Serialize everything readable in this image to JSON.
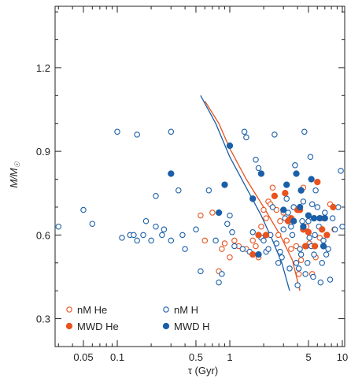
{
  "chart_data": {
    "type": "scatter",
    "xlabel": "τ (Gyr)",
    "ylabel_main": "M/M",
    "ylabel_sub": "☉",
    "x_scale": "log",
    "xlim": [
      0.028,
      10.5
    ],
    "ylim": [
      0.2,
      1.42
    ],
    "x_ticks": [
      {
        "value": 0.05,
        "label": "0.05"
      },
      {
        "value": 0.1,
        "label": "0.1"
      },
      {
        "value": 0.5,
        "label": "0.5"
      },
      {
        "value": 1,
        "label": "1"
      },
      {
        "value": 5,
        "label": "5"
      },
      {
        "value": 10,
        "label": "10"
      }
    ],
    "y_ticks": [
      {
        "value": 0.3,
        "label": "0.3"
      },
      {
        "value": 0.6,
        "label": "0.6"
      },
      {
        "value": 0.9,
        "label": "0.9"
      },
      {
        "value": 1.2,
        "label": "1.2"
      }
    ],
    "grid": false,
    "legend_position": "bottom-left",
    "colors": {
      "He": "#e8531e",
      "H": "#1a5fa8"
    },
    "series": [
      {
        "name": "nM He",
        "marker": "open",
        "color": "#e8531e",
        "points": [
          [
            0.55,
            0.67
          ],
          [
            0.6,
            0.58
          ],
          [
            0.7,
            0.68
          ],
          [
            0.8,
            0.47
          ],
          [
            0.85,
            0.55
          ],
          [
            0.9,
            0.57
          ],
          [
            1.0,
            0.52
          ],
          [
            1.1,
            0.58
          ],
          [
            1.2,
            0.56
          ],
          [
            1.4,
            0.55
          ],
          [
            1.6,
            0.58
          ],
          [
            1.7,
            0.56
          ],
          [
            1.8,
            0.52
          ],
          [
            1.9,
            0.63
          ],
          [
            2.0,
            0.69
          ],
          [
            2.1,
            0.66
          ],
          [
            2.2,
            0.72
          ],
          [
            2.3,
            0.71
          ],
          [
            2.4,
            0.77
          ],
          [
            2.5,
            0.74
          ],
          [
            2.6,
            0.69
          ],
          [
            2.7,
            0.6
          ],
          [
            2.8,
            0.65
          ],
          [
            3.0,
            0.68
          ],
          [
            3.2,
            0.58
          ],
          [
            3.5,
            0.55
          ],
          [
            3.7,
            0.7
          ],
          [
            3.9,
            0.56
          ],
          [
            4.1,
            0.46
          ],
          [
            4.3,
            0.51
          ],
          [
            4.5,
            0.77
          ],
          [
            4.8,
            0.63
          ],
          [
            5.1,
            0.57
          ],
          [
            5.4,
            0.46
          ],
          [
            5.8,
            0.52
          ],
          [
            6.3,
            0.59
          ],
          [
            6.8,
            0.66
          ],
          [
            7.3,
            0.6
          ],
          [
            7.8,
            0.71
          ],
          [
            8.5,
            0.62
          ]
        ]
      },
      {
        "name": "nM H",
        "marker": "open",
        "color": "#1a5fa8",
        "points": [
          [
            0.03,
            0.63
          ],
          [
            0.05,
            0.69
          ],
          [
            0.06,
            0.64
          ],
          [
            0.1,
            0.97
          ],
          [
            0.11,
            0.59
          ],
          [
            0.13,
            0.6
          ],
          [
            0.14,
            0.6
          ],
          [
            0.15,
            0.96
          ],
          [
            0.15,
            0.58
          ],
          [
            0.17,
            0.6
          ],
          [
            0.18,
            0.65
          ],
          [
            0.2,
            0.58
          ],
          [
            0.22,
            0.74
          ],
          [
            0.22,
            0.63
          ],
          [
            0.25,
            0.6
          ],
          [
            0.26,
            0.62
          ],
          [
            0.3,
            0.97
          ],
          [
            0.3,
            0.58
          ],
          [
            0.35,
            0.76
          ],
          [
            0.38,
            0.6
          ],
          [
            0.4,
            0.55
          ],
          [
            0.5,
            0.62
          ],
          [
            0.55,
            0.47
          ],
          [
            0.65,
            0.76
          ],
          [
            0.75,
            0.58
          ],
          [
            0.8,
            0.43
          ],
          [
            0.85,
            0.46
          ],
          [
            0.9,
            0.78
          ],
          [
            0.95,
            0.64
          ],
          [
            1.0,
            0.67
          ],
          [
            1.05,
            0.61
          ],
          [
            1.1,
            0.56
          ],
          [
            1.3,
            0.55
          ],
          [
            1.35,
            0.97
          ],
          [
            1.4,
            0.95
          ],
          [
            1.5,
            0.54
          ],
          [
            1.6,
            0.61
          ],
          [
            1.7,
            0.87
          ],
          [
            1.8,
            0.84
          ],
          [
            1.9,
            0.59
          ],
          [
            2.0,
            0.58
          ],
          [
            2.1,
            0.54
          ],
          [
            2.2,
            0.55
          ],
          [
            2.3,
            0.6
          ],
          [
            2.4,
            0.7
          ],
          [
            2.5,
            0.96
          ],
          [
            2.6,
            0.57
          ],
          [
            2.7,
            0.5
          ],
          [
            2.8,
            0.54
          ],
          [
            2.9,
            0.52
          ],
          [
            3.0,
            0.62
          ],
          [
            3.1,
            0.66
          ],
          [
            3.2,
            0.73
          ],
          [
            3.3,
            0.68
          ],
          [
            3.4,
            0.48
          ],
          [
            3.5,
            0.63
          ],
          [
            3.6,
            0.6
          ],
          [
            3.7,
            0.7
          ],
          [
            3.8,
            0.85
          ],
          [
            3.9,
            0.5
          ],
          [
            4.0,
            0.42
          ],
          [
            4.1,
            0.48
          ],
          [
            4.2,
            0.55
          ],
          [
            4.3,
            0.53
          ],
          [
            4.4,
            0.65
          ],
          [
            4.5,
            0.72
          ],
          [
            4.6,
            0.97
          ],
          [
            4.7,
            0.46
          ],
          [
            4.8,
            0.56
          ],
          [
            4.9,
            0.5
          ],
          [
            5.0,
            0.65
          ],
          [
            5.1,
            0.59
          ],
          [
            5.2,
            0.88
          ],
          [
            5.3,
            0.56
          ],
          [
            5.4,
            0.71
          ],
          [
            5.5,
            0.45
          ],
          [
            5.6,
            0.53
          ],
          [
            5.7,
            0.6
          ],
          [
            5.8,
            0.76
          ],
          [
            6.0,
            0.7
          ],
          [
            6.2,
            0.63
          ],
          [
            6.4,
            0.43
          ],
          [
            6.6,
            0.5
          ],
          [
            6.8,
            0.58
          ],
          [
            7.0,
            0.68
          ],
          [
            7.2,
            0.53
          ],
          [
            7.5,
            0.55
          ],
          [
            7.8,
            0.44
          ],
          [
            8.2,
            0.66
          ],
          [
            8.6,
            0.62
          ],
          [
            9.2,
            0.7
          ],
          [
            9.7,
            0.83
          ],
          [
            10.0,
            0.63
          ]
        ]
      },
      {
        "name": "MWD He",
        "marker": "filled",
        "color": "#e8531e",
        "points": [
          [
            1.6,
            0.53
          ],
          [
            1.8,
            0.6
          ],
          [
            2.1,
            0.6
          ],
          [
            2.5,
            0.74
          ],
          [
            3.1,
            0.75
          ],
          [
            3.3,
            0.65
          ],
          [
            3.5,
            0.66
          ],
          [
            4.0,
            0.69
          ],
          [
            4.2,
            0.69
          ],
          [
            4.5,
            0.62
          ],
          [
            4.7,
            0.56
          ],
          [
            5.0,
            0.61
          ],
          [
            5.7,
            0.56
          ],
          [
            6.0,
            0.79
          ],
          [
            6.6,
            0.62
          ],
          [
            7.3,
            0.6
          ],
          [
            8.3,
            0.7
          ]
        ]
      },
      {
        "name": "MWD H",
        "marker": "filled",
        "color": "#1a5fa8",
        "points": [
          [
            0.3,
            0.82
          ],
          [
            0.8,
            0.68
          ],
          [
            0.9,
            0.78
          ],
          [
            1.0,
            0.92
          ],
          [
            1.6,
            0.73
          ],
          [
            1.8,
            0.53
          ],
          [
            1.9,
            0.82
          ],
          [
            3.0,
            0.69
          ],
          [
            3.2,
            0.78
          ],
          [
            3.7,
            0.65
          ],
          [
            3.9,
            0.82
          ],
          [
            4.2,
            0.7
          ],
          [
            4.3,
            0.76
          ],
          [
            4.5,
            0.63
          ],
          [
            5.0,
            0.67
          ],
          [
            5.3,
            0.8
          ],
          [
            5.6,
            0.66
          ],
          [
            6.3,
            0.66
          ],
          [
            6.8,
            0.56
          ],
          [
            7.0,
            0.66
          ]
        ]
      }
    ],
    "lines": [
      {
        "color": "#e8531e",
        "points": [
          [
            0.6,
            1.08
          ],
          [
            0.8,
            1.0
          ],
          [
            1.0,
            0.91
          ],
          [
            1.4,
            0.8
          ],
          [
            2.0,
            0.7
          ],
          [
            2.8,
            0.6
          ],
          [
            3.6,
            0.51
          ],
          [
            4.2,
            0.4
          ]
        ]
      },
      {
        "color": "#1a5fa8",
        "points": [
          [
            0.55,
            1.1
          ],
          [
            0.75,
            1.0
          ],
          [
            1.0,
            0.88
          ],
          [
            1.4,
            0.77
          ],
          [
            1.9,
            0.67
          ],
          [
            2.4,
            0.58
          ],
          [
            2.9,
            0.5
          ],
          [
            3.4,
            0.4
          ]
        ]
      }
    ],
    "legend": [
      {
        "label": "nM He",
        "marker": "open",
        "color": "#e8531e"
      },
      {
        "label": "nM H",
        "marker": "open",
        "color": "#1a5fa8"
      },
      {
        "label": "MWD He",
        "marker": "filled",
        "color": "#e8531e"
      },
      {
        "label": "MWD H",
        "marker": "filled",
        "color": "#1a5fa8"
      }
    ]
  }
}
